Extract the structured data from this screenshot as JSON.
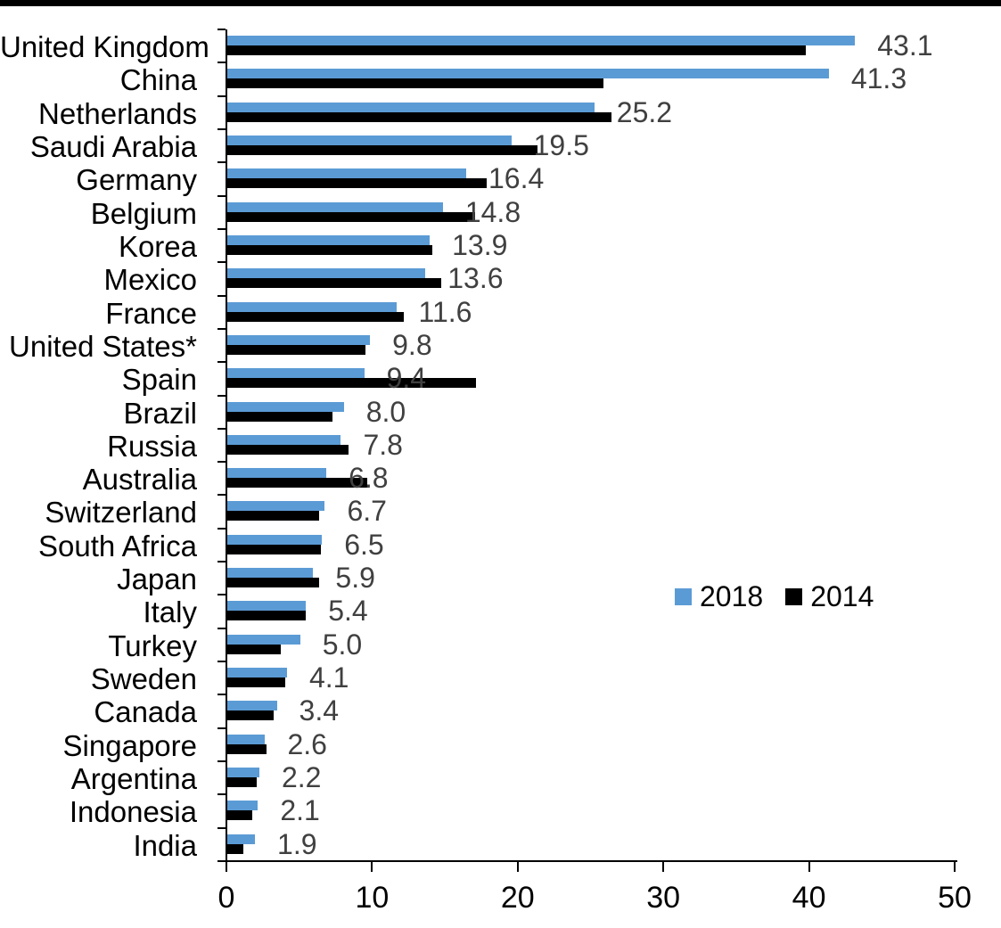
{
  "colors": {
    "background": "#ffffff",
    "top_strip": "#000000",
    "axis": "#000000",
    "value_labels": "#404040",
    "series_2018": "#5B9BD5",
    "series_2014": "#000000"
  },
  "chart_data": {
    "type": "bar",
    "orientation": "horizontal",
    "title": "",
    "xlabel": "",
    "ylabel": "",
    "xlim": [
      0,
      50
    ],
    "x_ticks": [
      "0",
      "10",
      "20",
      "30",
      "40",
      "50"
    ],
    "grid": false,
    "legend_position": "middle-right",
    "categories": [
      "United Kingdom",
      "China",
      "Netherlands",
      "Saudi Arabia",
      "Germany",
      "Belgium",
      "Korea",
      "Mexico",
      "France",
      "United States*",
      "Spain",
      "Brazil",
      "Russia",
      "Australia",
      "Switzerland",
      "South Africa",
      "Japan",
      "Italy",
      "Turkey",
      "Sweden",
      "Canada",
      "Singapore",
      "Argentina",
      "Indonesia",
      "India"
    ],
    "series": [
      {
        "name": "2018",
        "color": "#5B9BD5",
        "values": [
          43.1,
          41.3,
          25.2,
          19.5,
          16.4,
          14.8,
          13.9,
          13.6,
          11.6,
          9.8,
          9.4,
          8.0,
          7.8,
          6.8,
          6.7,
          6.5,
          5.9,
          5.4,
          5.0,
          4.1,
          3.4,
          2.6,
          2.2,
          2.1,
          1.9
        ],
        "data_labels": [
          "43.1",
          "41.3",
          "25.2",
          "19.5",
          "16.4",
          "14.8",
          "13.9",
          "13.6",
          "11.6",
          "9.8",
          "9.4",
          "8.0",
          "7.8",
          "6.8",
          "6.7",
          "6.5",
          "5.9",
          "5.4",
          "5.0",
          "4.1",
          "3.4",
          "2.6",
          "2.2",
          "2.1",
          "1.9"
        ]
      },
      {
        "name": "2014",
        "color": "#000000",
        "values": [
          39.7,
          25.8,
          26.4,
          21.3,
          17.8,
          17.0,
          14.1,
          14.7,
          12.1,
          9.5,
          17.1,
          7.2,
          8.3,
          9.6,
          6.3,
          6.4,
          6.3,
          5.4,
          3.7,
          4.0,
          3.2,
          2.7,
          2.0,
          1.7,
          1.1
        ],
        "data_labels": null
      }
    ]
  }
}
